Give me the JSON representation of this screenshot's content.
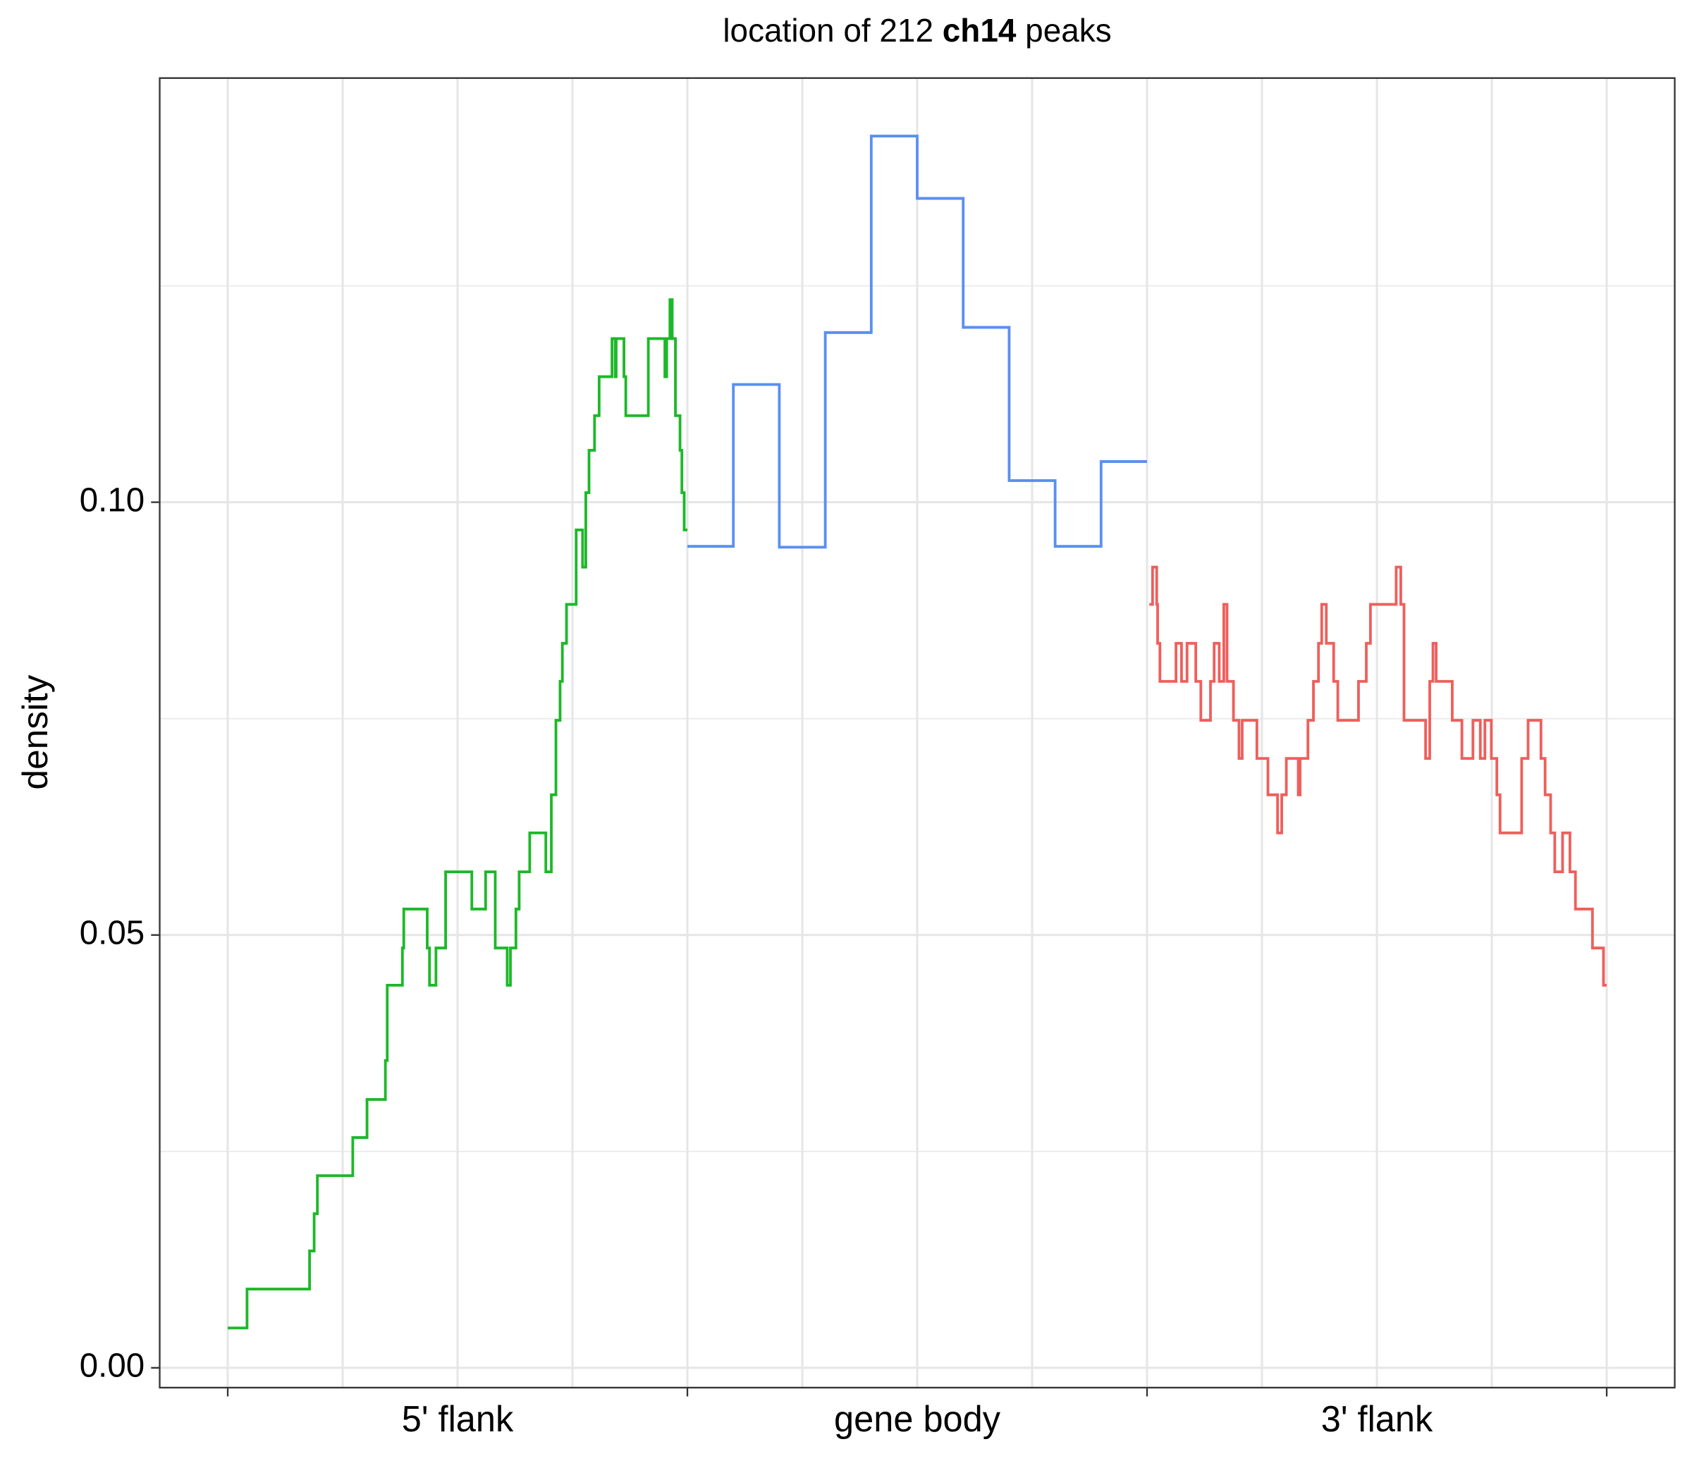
{
  "chart_data": {
    "type": "step",
    "title": [
      "location of 212 ",
      "ch14",
      " peaks"
    ],
    "title_bold": [
      false,
      true,
      false
    ],
    "ylabel": "density",
    "categories": [
      "5' flank",
      "gene body",
      "3' flank"
    ],
    "xtick_marks": [
      0,
      1,
      2,
      3
    ],
    "xgrid": [
      0,
      0.25,
      0.5,
      0.75,
      1,
      1.25,
      1.5,
      1.75,
      2,
      2.25,
      2.5,
      2.75,
      3
    ],
    "xlim": [
      -0.148,
      3.148
    ],
    "ylim": [
      -0.00229,
      0.149
    ],
    "yticks": [
      {
        "value": 0,
        "label": "0.00"
      },
      {
        "value": 0.05,
        "label": "0.05"
      },
      {
        "value": 0.1,
        "label": "0.10"
      }
    ],
    "ygrid_minor": [
      0.025,
      0.075,
      0.125
    ],
    "grid": true,
    "series": [
      {
        "color": "#1DB829",
        "x": [
          0.0,
          0.042,
          0.178,
          0.188,
          0.195,
          0.272,
          0.303,
          0.343,
          0.347,
          0.38,
          0.383,
          0.434,
          0.439,
          0.453,
          0.474,
          0.531,
          0.561,
          0.582,
          0.608,
          0.615,
          0.627,
          0.634,
          0.657,
          0.692,
          0.704,
          0.714,
          0.723,
          0.728,
          0.737,
          0.758,
          0.772,
          0.779,
          0.786,
          0.798,
          0.808,
          0.836,
          0.843,
          0.845,
          0.862,
          0.866,
          0.915,
          0.951,
          0.955,
          0.962,
          0.967,
          0.974,
          0.984,
          0.988,
          0.993,
          1.0
        ],
        "values": [
          0.0046,
          0.0091,
          0.0135,
          0.0178,
          0.0222,
          0.0266,
          0.031,
          0.0355,
          0.0442,
          0.0485,
          0.053,
          0.0485,
          0.0442,
          0.0485,
          0.0573,
          0.053,
          0.0573,
          0.0485,
          0.0442,
          0.0485,
          0.053,
          0.0573,
          0.0618,
          0.0573,
          0.0662,
          0.0748,
          0.0793,
          0.0837,
          0.0882,
          0.0968,
          0.0925,
          0.1011,
          0.106,
          0.11,
          0.1145,
          0.1189,
          0.1145,
          0.1189,
          0.1145,
          0.11,
          0.1189,
          0.1145,
          0.1189,
          0.1234,
          0.1189,
          0.11,
          0.106,
          0.1011,
          0.0968,
          0.0968
        ]
      },
      {
        "color": "#5B8FF0",
        "x": [
          1.0,
          1.1,
          1.2,
          1.3,
          1.4,
          1.5,
          1.6,
          1.7,
          1.8,
          1.9,
          2.0
        ],
        "values": [
          0.0949,
          0.1136,
          0.0948,
          0.1196,
          0.1423,
          0.1351,
          0.1202,
          0.1025,
          0.0949,
          0.1047,
          0.1047
        ]
      },
      {
        "color": "#EE5F5C",
        "x": [
          2.005,
          2.012,
          2.021,
          2.023,
          2.028,
          2.063,
          2.075,
          2.087,
          2.106,
          2.117,
          2.138,
          2.146,
          2.157,
          2.167,
          2.174,
          2.188,
          2.2,
          2.207,
          2.239,
          2.263,
          2.284,
          2.293,
          2.303,
          2.329,
          2.333,
          2.35,
          2.362,
          2.373,
          2.38,
          2.39,
          2.406,
          2.415,
          2.46,
          2.477,
          2.486,
          2.542,
          2.552,
          2.559,
          2.606,
          2.615,
          2.622,
          2.629,
          2.664,
          2.685,
          2.709,
          2.725,
          2.735,
          2.749,
          2.761,
          2.768,
          2.815,
          2.829,
          2.857,
          2.866,
          2.878,
          2.887,
          2.904,
          2.92,
          2.932,
          2.969,
          2.993,
          3.0
        ],
        "values": [
          0.0882,
          0.0925,
          0.0882,
          0.0837,
          0.0793,
          0.0837,
          0.0793,
          0.0837,
          0.0793,
          0.0748,
          0.0793,
          0.0837,
          0.0793,
          0.0882,
          0.0793,
          0.0748,
          0.0704,
          0.0748,
          0.0704,
          0.0662,
          0.0618,
          0.0662,
          0.0704,
          0.0662,
          0.0704,
          0.0748,
          0.0793,
          0.0837,
          0.0882,
          0.0837,
          0.0793,
          0.0748,
          0.0793,
          0.0837,
          0.0882,
          0.0925,
          0.0882,
          0.0748,
          0.0704,
          0.0793,
          0.0837,
          0.0793,
          0.0748,
          0.0704,
          0.0748,
          0.0704,
          0.0748,
          0.0704,
          0.0662,
          0.0618,
          0.0704,
          0.0748,
          0.0704,
          0.0662,
          0.0618,
          0.0573,
          0.0618,
          0.0573,
          0.053,
          0.0485,
          0.0442,
          0.0442
        ]
      }
    ]
  }
}
